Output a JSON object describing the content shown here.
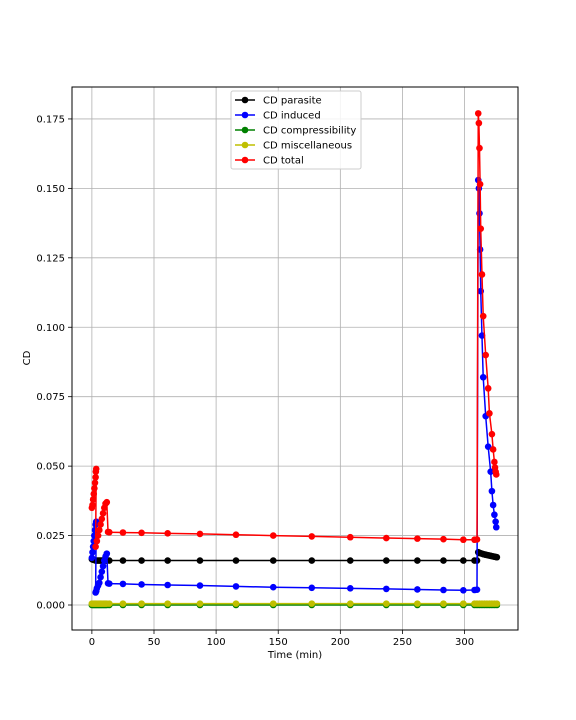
{
  "chart_data": {
    "type": "line",
    "xlabel": "Time (min)",
    "ylabel": "CD",
    "xlim": [
      -16,
      343
    ],
    "ylim": [
      -0.009,
      0.1865
    ],
    "xticks": [
      0,
      50,
      100,
      150,
      200,
      250,
      300
    ],
    "yticks": [
      0.0,
      0.025,
      0.05,
      0.075,
      0.1,
      0.125,
      0.15,
      0.175
    ],
    "ytick_labels": [
      "0.000",
      "0.025",
      "0.050",
      "0.075",
      "0.100",
      "0.125",
      "0.150",
      "0.175"
    ],
    "grid": true,
    "legend_position": "upper-center",
    "marker": "circle",
    "series": [
      {
        "name": "CD parasite",
        "color": "#000000",
        "points": [
          [
            0,
            0.0165
          ],
          [
            1,
            0.0163
          ],
          [
            2,
            0.0162
          ],
          [
            3,
            0.016
          ],
          [
            4,
            0.016
          ],
          [
            5,
            0.016
          ],
          [
            6,
            0.016
          ],
          [
            7,
            0.016
          ],
          [
            8,
            0.016
          ],
          [
            9,
            0.016
          ],
          [
            10,
            0.016
          ],
          [
            11,
            0.016
          ],
          [
            12,
            0.016
          ],
          [
            14,
            0.016
          ],
          [
            25,
            0.016
          ],
          [
            40,
            0.016
          ],
          [
            61,
            0.016
          ],
          [
            87,
            0.016
          ],
          [
            116,
            0.016
          ],
          [
            146,
            0.016
          ],
          [
            177,
            0.016
          ],
          [
            208,
            0.016
          ],
          [
            237,
            0.016
          ],
          [
            262,
            0.016
          ],
          [
            283,
            0.016
          ],
          [
            299,
            0.016
          ],
          [
            308,
            0.016
          ],
          [
            310,
            0.016
          ],
          [
            311,
            0.019
          ],
          [
            312,
            0.0188
          ],
          [
            313,
            0.0186
          ],
          [
            314,
            0.0185
          ],
          [
            315,
            0.0183
          ],
          [
            316,
            0.0182
          ],
          [
            317,
            0.0181
          ],
          [
            318,
            0.018
          ],
          [
            319,
            0.0179
          ],
          [
            320,
            0.0178
          ],
          [
            321,
            0.0177
          ],
          [
            322,
            0.0176
          ],
          [
            323,
            0.0175
          ],
          [
            324,
            0.0174
          ],
          [
            325,
            0.0173
          ],
          [
            326,
            0.0172
          ]
        ]
      },
      {
        "name": "CD induced",
        "color": "#0000ff",
        "points": [
          [
            0,
            0.017
          ],
          [
            0.5,
            0.019
          ],
          [
            1,
            0.021
          ],
          [
            1.5,
            0.023
          ],
          [
            2,
            0.025
          ],
          [
            2.5,
            0.027
          ],
          [
            3,
            0.029
          ],
          [
            3.5,
            0.03
          ],
          [
            3,
            0.0045
          ],
          [
            3.5,
            0.005
          ],
          [
            4,
            0.006
          ],
          [
            5,
            0.007
          ],
          [
            6,
            0.008
          ],
          [
            7,
            0.01
          ],
          [
            8,
            0.012
          ],
          [
            9,
            0.014
          ],
          [
            10,
            0.016
          ],
          [
            11,
            0.0175
          ],
          [
            12,
            0.0185
          ],
          [
            13,
            0.0078
          ],
          [
            14,
            0.0077
          ],
          [
            25,
            0.0076
          ],
          [
            40,
            0.0074
          ],
          [
            61,
            0.0072
          ],
          [
            87,
            0.007
          ],
          [
            116,
            0.0067
          ],
          [
            146,
            0.0064
          ],
          [
            177,
            0.0062
          ],
          [
            208,
            0.006
          ],
          [
            237,
            0.0058
          ],
          [
            262,
            0.0056
          ],
          [
            283,
            0.0054
          ],
          [
            299,
            0.0053
          ],
          [
            308,
            0.0054
          ],
          [
            310,
            0.0055
          ],
          [
            311,
            0.153
          ],
          [
            311.5,
            0.15
          ],
          [
            312,
            0.141
          ],
          [
            312.5,
            0.128
          ],
          [
            313,
            0.113
          ],
          [
            314,
            0.097
          ],
          [
            315,
            0.082
          ],
          [
            317,
            0.068
          ],
          [
            319,
            0.057
          ],
          [
            321,
            0.048
          ],
          [
            322,
            0.041
          ],
          [
            323,
            0.036
          ],
          [
            324,
            0.0325
          ],
          [
            325,
            0.03
          ],
          [
            325.5,
            0.028
          ]
        ]
      },
      {
        "name": "CD compressibility",
        "color": "#008000",
        "points": [
          [
            0,
            0.0
          ],
          [
            1,
            0.0
          ],
          [
            2,
            0.0
          ],
          [
            3,
            0.0
          ],
          [
            4,
            0.0
          ],
          [
            5,
            0.0
          ],
          [
            6,
            0.0
          ],
          [
            7,
            0.0
          ],
          [
            8,
            0.0
          ],
          [
            9,
            0.0
          ],
          [
            10,
            0.0
          ],
          [
            11,
            0.0
          ],
          [
            12,
            0.0
          ],
          [
            14,
            0.0
          ],
          [
            25,
            0.0
          ],
          [
            40,
            0.0
          ],
          [
            61,
            0.0
          ],
          [
            87,
            0.0
          ],
          [
            116,
            0.0
          ],
          [
            146,
            0.0
          ],
          [
            177,
            0.0
          ],
          [
            208,
            0.0
          ],
          [
            237,
            0.0
          ],
          [
            262,
            0.0
          ],
          [
            283,
            0.0
          ],
          [
            299,
            0.0
          ],
          [
            308,
            0.0
          ],
          [
            310,
            0.0
          ],
          [
            312,
            0.0
          ],
          [
            314,
            0.0
          ],
          [
            316,
            0.0
          ],
          [
            318,
            0.0
          ],
          [
            320,
            0.0
          ],
          [
            322,
            0.0
          ],
          [
            324,
            0.0
          ],
          [
            326,
            0.0
          ]
        ]
      },
      {
        "name": "CD miscellaneous",
        "color": "#bfbf00",
        "points": [
          [
            0,
            0.0005
          ],
          [
            1,
            0.0005
          ],
          [
            2,
            0.0005
          ],
          [
            3,
            0.0005
          ],
          [
            4,
            0.0005
          ],
          [
            5,
            0.0005
          ],
          [
            6,
            0.0005
          ],
          [
            7,
            0.0005
          ],
          [
            8,
            0.0005
          ],
          [
            9,
            0.0005
          ],
          [
            10,
            0.0005
          ],
          [
            11,
            0.0005
          ],
          [
            12,
            0.0005
          ],
          [
            14,
            0.0005
          ],
          [
            25,
            0.0005
          ],
          [
            40,
            0.0005
          ],
          [
            61,
            0.0005
          ],
          [
            87,
            0.0005
          ],
          [
            116,
            0.0005
          ],
          [
            146,
            0.0005
          ],
          [
            177,
            0.0005
          ],
          [
            208,
            0.0005
          ],
          [
            237,
            0.0005
          ],
          [
            262,
            0.0005
          ],
          [
            283,
            0.0005
          ],
          [
            299,
            0.0005
          ],
          [
            308,
            0.0005
          ],
          [
            310,
            0.0005
          ],
          [
            312,
            0.0005
          ],
          [
            314,
            0.0005
          ],
          [
            316,
            0.0005
          ],
          [
            318,
            0.0005
          ],
          [
            320,
            0.0005
          ],
          [
            322,
            0.0005
          ],
          [
            324,
            0.0005
          ],
          [
            326,
            0.0005
          ]
        ]
      },
      {
        "name": "CD total",
        "color": "#ff0000",
        "points": [
          [
            0,
            0.035
          ],
          [
            0.5,
            0.036
          ],
          [
            1,
            0.038
          ],
          [
            1.5,
            0.04
          ],
          [
            2,
            0.042
          ],
          [
            2.5,
            0.044
          ],
          [
            3,
            0.046
          ],
          [
            3.2,
            0.048
          ],
          [
            3.5,
            0.049
          ],
          [
            3,
            0.021
          ],
          [
            4,
            0.023
          ],
          [
            5,
            0.025
          ],
          [
            6,
            0.027
          ],
          [
            7,
            0.029
          ],
          [
            8,
            0.031
          ],
          [
            9,
            0.033
          ],
          [
            10,
            0.035
          ],
          [
            11,
            0.0365
          ],
          [
            12,
            0.037
          ],
          [
            13,
            0.0263
          ],
          [
            14,
            0.0262
          ],
          [
            25,
            0.0261
          ],
          [
            40,
            0.026
          ],
          [
            61,
            0.0258
          ],
          [
            87,
            0.0256
          ],
          [
            116,
            0.0253
          ],
          [
            146,
            0.025
          ],
          [
            177,
            0.0247
          ],
          [
            208,
            0.0244
          ],
          [
            237,
            0.0241
          ],
          [
            262,
            0.0239
          ],
          [
            283,
            0.0237
          ],
          [
            299,
            0.0235
          ],
          [
            308,
            0.0235
          ],
          [
            310,
            0.0236
          ],
          [
            311,
            0.177
          ],
          [
            311.5,
            0.1735
          ],
          [
            312,
            0.1645
          ],
          [
            312.5,
            0.1515
          ],
          [
            313,
            0.1355
          ],
          [
            314,
            0.119
          ],
          [
            315,
            0.104
          ],
          [
            317,
            0.09
          ],
          [
            319,
            0.078
          ],
          [
            320,
            0.069
          ],
          [
            322,
            0.0615
          ],
          [
            323,
            0.056
          ],
          [
            324,
            0.0515
          ],
          [
            324.5,
            0.0495
          ],
          [
            325,
            0.048
          ],
          [
            325.5,
            0.047
          ]
        ]
      }
    ]
  }
}
